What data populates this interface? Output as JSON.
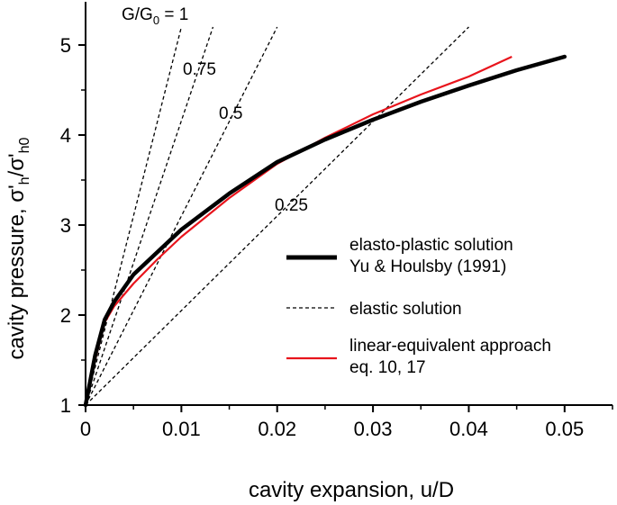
{
  "chart_data": {
    "type": "line",
    "title": "",
    "xlabel": "cavity expansion, u/D",
    "ylabel_main": "cavity pressure, σ'",
    "ylabel_sub1": "h",
    "ylabel_slash": "/σ'",
    "ylabel_sub2": "h0",
    "xlim": [
      0,
      0.055
    ],
    "ylim": [
      1,
      5.4
    ],
    "x_ticks": [
      {
        "value": 0,
        "label": "0"
      },
      {
        "value": 0.01,
        "label": "0.01"
      },
      {
        "value": 0.02,
        "label": "0.02"
      },
      {
        "value": 0.03,
        "label": "0.03"
      },
      {
        "value": 0.04,
        "label": "0.04"
      },
      {
        "value": 0.05,
        "label": "0.05"
      }
    ],
    "y_ticks": [
      {
        "value": 1,
        "label": "1"
      },
      {
        "value": 2,
        "label": "2"
      },
      {
        "value": 3,
        "label": "3"
      },
      {
        "value": 4,
        "label": "4"
      },
      {
        "value": 5,
        "label": "5"
      }
    ],
    "grid": false,
    "legend_position": "right",
    "series": [
      {
        "name": "elasto-plastic solution",
        "name_line2": "Yu & Houlsby (1991)",
        "style": "thick-solid",
        "color": "#000000",
        "x": [
          0,
          0.001,
          0.002,
          0.003,
          0.005,
          0.0075,
          0.01,
          0.015,
          0.02,
          0.025,
          0.03,
          0.035,
          0.04,
          0.045,
          0.05
        ],
        "y": [
          1,
          1.55,
          1.95,
          2.15,
          2.45,
          2.7,
          2.95,
          3.35,
          3.7,
          3.95,
          4.17,
          4.37,
          4.55,
          4.72,
          4.87
        ]
      },
      {
        "name": "linear-equivalent approach",
        "name_line2": "eq. 10, 17",
        "style": "solid",
        "color": "#e8141c",
        "x": [
          0,
          0.001,
          0.002,
          0.003,
          0.005,
          0.0075,
          0.01,
          0.015,
          0.02,
          0.025,
          0.03,
          0.035,
          0.04,
          0.0445
        ],
        "y": [
          1,
          1.5,
          1.92,
          2.1,
          2.35,
          2.62,
          2.87,
          3.3,
          3.68,
          3.97,
          4.23,
          4.45,
          4.65,
          4.87
        ]
      },
      {
        "name": "elastic solution",
        "style": "dashed",
        "color": "#000000",
        "lines": [
          {
            "label": "G/G",
            "label_sub": "0",
            "label_tail": " = 1",
            "x": [
              0,
              0.01
            ],
            "y": [
              1,
              5.2
            ]
          },
          {
            "label": "0.75",
            "x": [
              0,
              0.0133
            ],
            "y": [
              1,
              5.2
            ]
          },
          {
            "label": "0.5",
            "x": [
              0,
              0.02
            ],
            "y": [
              1,
              5.2
            ]
          },
          {
            "label": "0.25",
            "x": [
              0,
              0.04
            ],
            "y": [
              1,
              5.2
            ]
          }
        ]
      }
    ]
  }
}
